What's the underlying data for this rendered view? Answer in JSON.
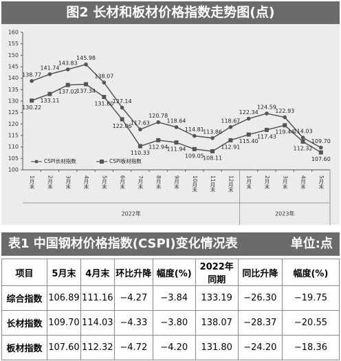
{
  "chart_data": {
    "type": "line",
    "title": "图2 长材和板材价格指数走势图(点)",
    "category_groups": [
      {
        "label": "2022年",
        "categories": [
          "1月末",
          "2月末",
          "3月末",
          "4月末",
          "5月末",
          "6月末",
          "7月末",
          "8月末",
          "9月末",
          "10月末",
          "11月末",
          "12月末"
        ]
      },
      {
        "label": "2023年",
        "categories": [
          "1月末",
          "2月末",
          "3月末",
          "4月末",
          "5月末"
        ]
      }
    ],
    "series": [
      {
        "name": "CSPI长材指数",
        "color": "#555555",
        "marker": "circle",
        "values": [
          138.77,
          141.74,
          143.83,
          145.98,
          138.07,
          127.14,
          117.63,
          120.78,
          118.64,
          114.81,
          113.86,
          118.67,
          122.34,
          124.59,
          122.93,
          114.03,
          109.7
        ],
        "value_labels": [
          "138.77",
          "141.74",
          "143.83",
          "145.98",
          "138.07",
          "127.14",
          "117.63",
          "120.78",
          "118.64",
          "114.81",
          "113.86",
          "118.67",
          "122.34",
          "124.59",
          "122.93",
          "114.03",
          "109.70"
        ]
      },
      {
        "name": "CSPI板材指数",
        "color": "#555555",
        "marker": "square",
        "values": [
          130.22,
          133.11,
          137.02,
          137.34,
          131.8,
          122.06,
          110.33,
          112.94,
          111.94,
          109.05,
          108.11,
          112.91,
          115.4,
          117.43,
          119.44,
          112.32,
          107.6
        ],
        "value_labels": [
          "130.22",
          "133.11",
          "137.02",
          "137.34",
          "131.80",
          "122.06",
          "110.33",
          "112.94",
          "111.94",
          "109.05",
          "108.11",
          "112.91",
          "115.40",
          "117.43",
          "119.44",
          "112.32",
          "107.60"
        ]
      }
    ],
    "ylim": [
      100,
      160
    ],
    "yticks": [
      100,
      105,
      110,
      115,
      120,
      125,
      130,
      135,
      140,
      145,
      150,
      155,
      160
    ],
    "grid": false,
    "legend": "lower-left"
  },
  "table": {
    "title": "表1 中国钢材价格指数(CSPI)变化情况表",
    "unit": "单位:点",
    "header": [
      "项目",
      "5月末",
      "4月末",
      "环比升降",
      "幅度(%)",
      "2022年同期",
      "同比升降",
      "幅度(%)"
    ],
    "rows": [
      [
        "综合指数",
        "106.89",
        "111.16",
        "−4.27",
        "−3.84",
        "133.19",
        "−26.30",
        "−19.75"
      ],
      [
        "长材指数",
        "109.70",
        "114.03",
        "−4.33",
        "−3.80",
        "138.07",
        "−28.37",
        "−20.55"
      ],
      [
        "板材指数",
        "107.60",
        "112.32",
        "−4.72",
        "−4.20",
        "131.80",
        "−24.20",
        "−18.36"
      ]
    ]
  }
}
